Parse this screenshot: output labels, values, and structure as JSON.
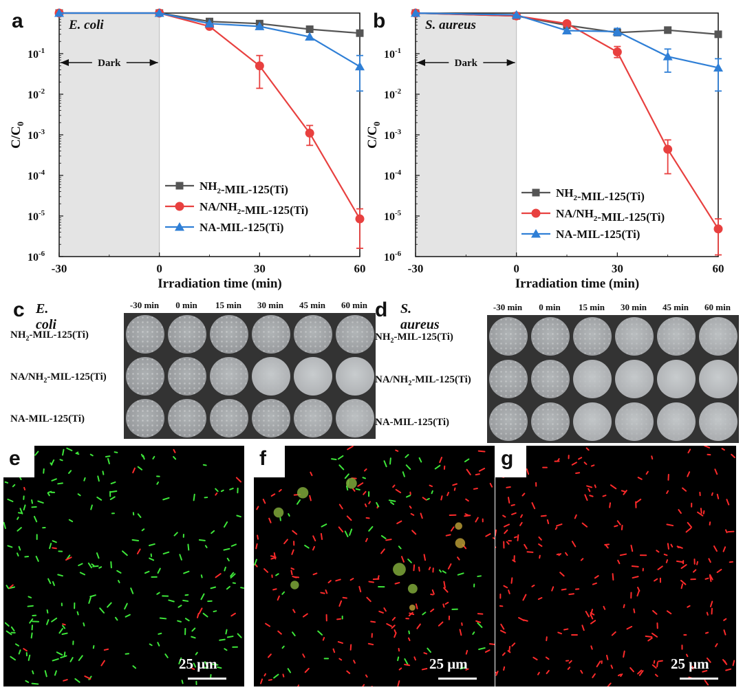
{
  "chart_data": [
    {
      "type": "line",
      "panel": "a",
      "title": "E. coli",
      "xlabel": "Irradiation time (min)",
      "ylabel": "C/C0",
      "yscale": "log",
      "ylim": [
        1e-06,
        1
      ],
      "xlim": [
        -30,
        60
      ],
      "x_ticks": [
        "-30",
        "0",
        "30",
        "60"
      ],
      "y_ticks": [
        "10-6",
        "10-5",
        "10-4",
        "10-3",
        "10-2",
        "10-1"
      ],
      "annotation": "Dark",
      "x": [
        -30,
        0,
        15,
        30,
        45,
        60
      ],
      "series": [
        {
          "name": "NH2-MIL-125(Ti)",
          "color": "#555555",
          "marker": "square",
          "values": [
            1,
            1,
            0.62,
            0.55,
            0.4,
            0.32
          ],
          "err": [
            0,
            0,
            0,
            0,
            0,
            0
          ]
        },
        {
          "name": "NA/NH2-MIL-125(Ti)",
          "color": "#e8403f",
          "marker": "circle",
          "values": [
            1,
            1,
            0.47,
            0.05,
            0.0011,
            8.5e-06
          ],
          "err_low": [
            1,
            1,
            0.47,
            0.014,
            0.00055,
            1.6e-06
          ],
          "err_high": [
            1,
            1,
            0.47,
            0.09,
            0.0017,
            1.5e-05
          ]
        },
        {
          "name": "NA-MIL-125(Ti)",
          "color": "#2f7fd6",
          "marker": "triangle",
          "values": [
            1,
            1,
            0.55,
            0.47,
            0.26,
            0.048
          ],
          "err_low": [
            1,
            1,
            0.55,
            0.47,
            0.26,
            0.012
          ],
          "err_high": [
            1,
            1,
            0.55,
            0.47,
            0.26,
            0.09
          ]
        }
      ]
    },
    {
      "type": "line",
      "panel": "b",
      "title": "S. aureus",
      "xlabel": "Irradiation time (min)",
      "ylabel": "C/C0",
      "yscale": "log",
      "ylim": [
        1e-06,
        1
      ],
      "xlim": [
        -30,
        60
      ],
      "x_ticks": [
        "-30",
        "0",
        "30",
        "60"
      ],
      "y_ticks": [
        "10-6",
        "10-5",
        "10-4",
        "10-3",
        "10-2",
        "10-1"
      ],
      "annotation": "Dark",
      "x": [
        -30,
        0,
        15,
        30,
        45,
        60
      ],
      "series": [
        {
          "name": "NH2-MIL-125(Ti)",
          "color": "#555555",
          "marker": "square",
          "values": [
            1,
            0.85,
            0.5,
            0.33,
            0.38,
            0.3
          ],
          "err": [
            0,
            0,
            0,
            0,
            0,
            0
          ]
        },
        {
          "name": "NA/NH2-MIL-125(Ti)",
          "color": "#e8403f",
          "marker": "circle",
          "values": [
            1,
            0.85,
            0.55,
            0.11,
            0.00044,
            4.8e-06
          ],
          "err_low": [
            1,
            0.85,
            0.55,
            0.08,
            0.00011,
            1.1e-06
          ],
          "err_high": [
            1,
            0.85,
            0.55,
            0.15,
            0.00075,
            8.5e-06
          ]
        },
        {
          "name": "NA-MIL-125(Ti)",
          "color": "#2f7fd6",
          "marker": "triangle",
          "values": [
            1,
            0.9,
            0.37,
            0.35,
            0.085,
            0.045
          ],
          "err_low": [
            1,
            0.9,
            0.37,
            0.28,
            0.035,
            0.012
          ],
          "err_high": [
            1,
            0.9,
            0.37,
            0.42,
            0.13,
            0.075
          ]
        }
      ]
    }
  ],
  "plates": {
    "c": {
      "letter": "c",
      "title": "E. coli",
      "times": [
        "-30 min",
        "0 min",
        "15 min",
        "30 min",
        "45 min",
        "60 min"
      ],
      "rows": [
        {
          "label": "NH2-MIL-125(Ti)",
          "colonies": [
            0.9,
            0.9,
            0.9,
            0.8,
            0.8,
            0.75
          ]
        },
        {
          "label": "NA/NH2-MIL-125(Ti)",
          "colonies": [
            0.9,
            0.9,
            0.6,
            0.1,
            0,
            0
          ]
        },
        {
          "label": "NA-MIL-125(Ti)",
          "colonies": [
            0.9,
            0.85,
            0.8,
            0.8,
            0.6,
            0.4
          ]
        }
      ]
    },
    "d": {
      "letter": "d",
      "title": "S. aureus",
      "times": [
        "-30 min",
        "0 min",
        "15 min",
        "30 min",
        "45 min",
        "60 min"
      ],
      "rows": [
        {
          "label": "NH2-MIL-125(Ti)",
          "colonies": [
            0.8,
            0.8,
            0.7,
            0.5,
            0.5,
            0.4
          ]
        },
        {
          "label": "NA/NH2-MIL-125(Ti)",
          "colonies": [
            0.8,
            0.7,
            0.2,
            0.1,
            0,
            0
          ]
        },
        {
          "label": "NA-MIL-125(Ti)",
          "colonies": [
            0.8,
            0.7,
            0.2,
            0.3,
            0.2,
            0.2
          ]
        }
      ]
    }
  },
  "micrographs": [
    {
      "letter": "e",
      "scalebar": "25 μm",
      "green_fraction": 0.95
    },
    {
      "letter": "f",
      "scalebar": "25 μm",
      "green_fraction": 0.35
    },
    {
      "letter": "g",
      "scalebar": "25 μm",
      "green_fraction": 0.0
    }
  ],
  "colors": {
    "gray": "#555555",
    "red": "#e8403f",
    "blue": "#2f7fd6",
    "dark_region": "#e4e4e4"
  }
}
